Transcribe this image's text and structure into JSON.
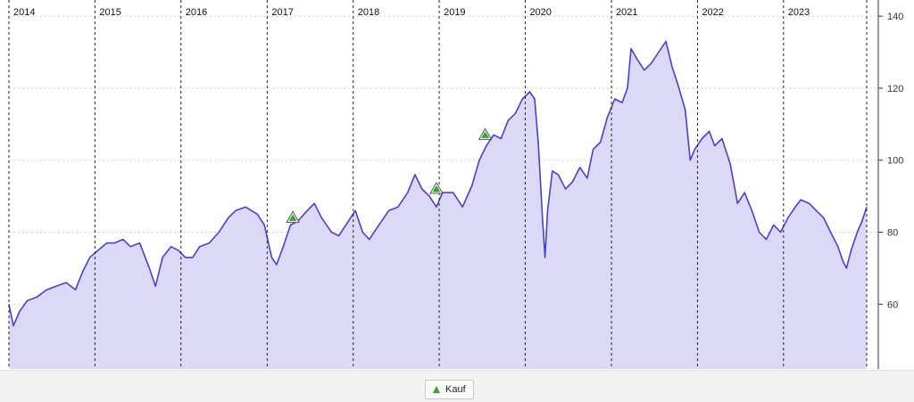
{
  "chart_data": {
    "type": "area",
    "title": "",
    "xlabel": "",
    "ylabel": "",
    "x_domain": [
      "2014-01-01",
      "2023-12-20"
    ],
    "ylim": [
      42,
      143
    ],
    "y_ticks": [
      60,
      80,
      100,
      120,
      140
    ],
    "year_labels": [
      "2014",
      "2015",
      "2016",
      "2017",
      "2018",
      "2019",
      "2020",
      "2021",
      "2022",
      "2023"
    ],
    "grid": "dashed vertical year boundaries, dotted horizontal",
    "line_color": "#4a3fd6",
    "fill_color": "#dcd9f7",
    "series": [
      {
        "points": [
          [
            "2014-01-01",
            60
          ],
          [
            "2014-01-20",
            54
          ],
          [
            "2014-02-15",
            58
          ],
          [
            "2014-03-20",
            61
          ],
          [
            "2014-04-30",
            62
          ],
          [
            "2014-06-10",
            64
          ],
          [
            "2014-07-20",
            65
          ],
          [
            "2014-09-01",
            66
          ],
          [
            "2014-10-10",
            64
          ],
          [
            "2014-11-10",
            69
          ],
          [
            "2014-12-10",
            73
          ],
          [
            "2015-01-15",
            75
          ],
          [
            "2015-02-20",
            77
          ],
          [
            "2015-03-25",
            77
          ],
          [
            "2015-04-30",
            78
          ],
          [
            "2015-06-01",
            76
          ],
          [
            "2015-07-10",
            77
          ],
          [
            "2015-08-20",
            70
          ],
          [
            "2015-09-15",
            65
          ],
          [
            "2015-10-15",
            73
          ],
          [
            "2015-11-20",
            76
          ],
          [
            "2015-12-20",
            75
          ],
          [
            "2016-01-20",
            73
          ],
          [
            "2016-02-20",
            73
          ],
          [
            "2016-03-20",
            76
          ],
          [
            "2016-04-30",
            77
          ],
          [
            "2016-06-10",
            80
          ],
          [
            "2016-07-20",
            84
          ],
          [
            "2016-08-20",
            86
          ],
          [
            "2016-10-01",
            87
          ],
          [
            "2016-11-20",
            85
          ],
          [
            "2016-12-20",
            82
          ],
          [
            "2017-01-20",
            73
          ],
          [
            "2017-02-10",
            71
          ],
          [
            "2017-03-10",
            76
          ],
          [
            "2017-04-10",
            82
          ],
          [
            "2017-05-10",
            83
          ],
          [
            "2017-06-20",
            86
          ],
          [
            "2017-07-20",
            88
          ],
          [
            "2017-08-20",
            84
          ],
          [
            "2017-10-01",
            80
          ],
          [
            "2017-11-01",
            79
          ],
          [
            "2017-12-01",
            82
          ],
          [
            "2018-01-10",
            86
          ],
          [
            "2018-02-10",
            80
          ],
          [
            "2018-03-10",
            78
          ],
          [
            "2018-04-20",
            82
          ],
          [
            "2018-06-01",
            86
          ],
          [
            "2018-07-10",
            87
          ],
          [
            "2018-08-20",
            91
          ],
          [
            "2018-09-20",
            96
          ],
          [
            "2018-10-20",
            92
          ],
          [
            "2018-11-20",
            90
          ],
          [
            "2018-12-20",
            87
          ],
          [
            "2019-01-15",
            91
          ],
          [
            "2019-03-01",
            91
          ],
          [
            "2019-04-10",
            87
          ],
          [
            "2019-05-20",
            93
          ],
          [
            "2019-06-20",
            100
          ],
          [
            "2019-07-20",
            104
          ],
          [
            "2019-08-20",
            107
          ],
          [
            "2019-09-20",
            106
          ],
          [
            "2019-10-20",
            111
          ],
          [
            "2019-11-20",
            113
          ],
          [
            "2019-12-20",
            117
          ],
          [
            "2020-01-20",
            119
          ],
          [
            "2020-02-10",
            117
          ],
          [
            "2020-02-25",
            105
          ],
          [
            "2020-03-15",
            83
          ],
          [
            "2020-03-25",
            73
          ],
          [
            "2020-04-05",
            86
          ],
          [
            "2020-04-25",
            97
          ],
          [
            "2020-05-20",
            96
          ],
          [
            "2020-06-20",
            92
          ],
          [
            "2020-07-20",
            94
          ],
          [
            "2020-08-20",
            98
          ],
          [
            "2020-09-20",
            95
          ],
          [
            "2020-10-15",
            103
          ],
          [
            "2020-11-15",
            105
          ],
          [
            "2020-12-15",
            112
          ],
          [
            "2021-01-15",
            117
          ],
          [
            "2021-02-15",
            116
          ],
          [
            "2021-03-10",
            120
          ],
          [
            "2021-03-25",
            131
          ],
          [
            "2021-04-20",
            128
          ],
          [
            "2021-05-20",
            125
          ],
          [
            "2021-06-20",
            127
          ],
          [
            "2021-07-20",
            130
          ],
          [
            "2021-08-20",
            133
          ],
          [
            "2021-09-15",
            126
          ],
          [
            "2021-10-10",
            121
          ],
          [
            "2021-11-10",
            114
          ],
          [
            "2021-12-01",
            100
          ],
          [
            "2021-12-20",
            103
          ],
          [
            "2022-01-20",
            106
          ],
          [
            "2022-02-20",
            108
          ],
          [
            "2022-03-15",
            104
          ],
          [
            "2022-04-15",
            106
          ],
          [
            "2022-05-20",
            99
          ],
          [
            "2022-06-20",
            88
          ],
          [
            "2022-07-20",
            91
          ],
          [
            "2022-08-20",
            86
          ],
          [
            "2022-09-20",
            80
          ],
          [
            "2022-10-20",
            78
          ],
          [
            "2022-11-20",
            82
          ],
          [
            "2022-12-20",
            80
          ],
          [
            "2023-01-20",
            84
          ],
          [
            "2023-02-20",
            87
          ],
          [
            "2023-03-15",
            89
          ],
          [
            "2023-04-20",
            88
          ],
          [
            "2023-05-20",
            86
          ],
          [
            "2023-06-20",
            84
          ],
          [
            "2023-07-20",
            80
          ],
          [
            "2023-08-20",
            76
          ],
          [
            "2023-09-10",
            72
          ],
          [
            "2023-09-25",
            70
          ],
          [
            "2023-10-15",
            75
          ],
          [
            "2023-11-10",
            80
          ],
          [
            "2023-11-30",
            83
          ],
          [
            "2023-12-20",
            87
          ]
        ]
      }
    ],
    "markers": [
      {
        "date": "2017-04-20",
        "value": 84
      },
      {
        "date": "2018-12-20",
        "value": 92
      },
      {
        "date": "2019-07-15",
        "value": 107
      }
    ],
    "marker_color": "#3aa232",
    "legend": {
      "label": "Kauf",
      "position": "bottom-center"
    }
  }
}
